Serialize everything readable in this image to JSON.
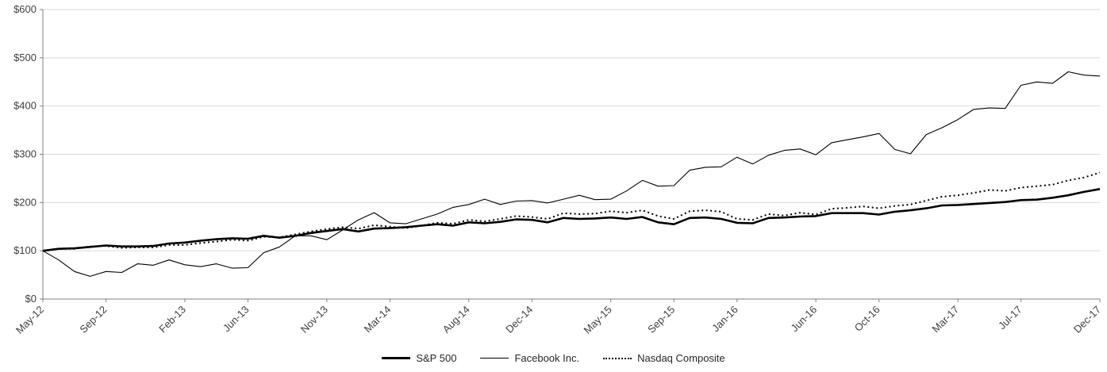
{
  "colors": {
    "background": "#ffffff",
    "grid": "#d9d9d9",
    "axis": "#808080",
    "text": "#404040",
    "series": "#000000"
  },
  "chart_data": {
    "type": "line",
    "title": "",
    "xlabel": "",
    "ylabel": "",
    "ylim": [
      0,
      600
    ],
    "y_tick_step": 100,
    "y_tick_labels": [
      "$0",
      "$100",
      "$200",
      "$300",
      "$400",
      "$500",
      "$600"
    ],
    "grid": "horizontal",
    "legend_position": "bottom-center",
    "x_months": [
      "May-12",
      "Jun-12",
      "Jul-12",
      "Aug-12",
      "Sep-12",
      "Oct-12",
      "Nov-12",
      "Dec-12",
      "Jan-13",
      "Feb-13",
      "Mar-13",
      "Apr-13",
      "May-13",
      "Jun-13",
      "Jul-13",
      "Aug-13",
      "Sep-13",
      "Oct-13",
      "Nov-13",
      "Dec-13",
      "Jan-14",
      "Feb-14",
      "Mar-14",
      "Apr-14",
      "May-14",
      "Jun-14",
      "Jul-14",
      "Aug-14",
      "Sep-14",
      "Oct-14",
      "Nov-14",
      "Dec-14",
      "Jan-15",
      "Feb-15",
      "Mar-15",
      "Apr-15",
      "May-15",
      "Jun-15",
      "Jul-15",
      "Aug-15",
      "Sep-15",
      "Oct-15",
      "Nov-15",
      "Dec-15",
      "Jan-16",
      "Feb-16",
      "Mar-16",
      "Apr-16",
      "May-16",
      "Jun-16",
      "Jul-16",
      "Aug-16",
      "Sep-16",
      "Oct-16",
      "Nov-16",
      "Dec-16",
      "Jan-17",
      "Feb-17",
      "Mar-17",
      "Apr-17",
      "May-17",
      "Jun-17",
      "Jul-17",
      "Aug-17",
      "Sep-17",
      "Oct-17",
      "Nov-17",
      "Dec-17"
    ],
    "x_tick_labels": [
      "May-12",
      "Sep-12",
      "Feb-13",
      "Jun-13",
      "Nov-13",
      "Mar-14",
      "Aug-14",
      "Dec-14",
      "May-15",
      "Sep-15",
      "Jan-16",
      "Jun-16",
      "Oct-16",
      "Mar-17",
      "Jul-17",
      "Dec-17"
    ],
    "x_tick_indices": [
      0,
      4,
      9,
      13,
      18,
      22,
      27,
      31,
      36,
      40,
      44,
      49,
      53,
      58,
      62,
      67
    ],
    "series": [
      {
        "name": "S&P 500",
        "style": "solid-thick",
        "color": "#000000",
        "values": [
          100,
          104,
          105,
          108,
          111,
          109,
          109,
          110,
          115,
          117,
          121,
          124,
          126,
          125,
          131,
          127,
          131,
          137,
          141,
          145,
          140,
          146,
          147,
          149,
          152,
          155,
          152,
          159,
          157,
          160,
          165,
          164,
          159,
          168,
          166,
          167,
          169,
          166,
          170,
          159,
          155,
          168,
          169,
          166,
          158,
          157,
          168,
          169,
          171,
          172,
          178,
          178,
          178,
          175,
          181,
          184,
          188,
          194,
          195,
          197,
          199,
          201,
          205,
          206,
          210,
          215,
          222,
          228
        ]
      },
      {
        "name": "Facebook Inc.",
        "style": "solid-thin",
        "color": "#000000",
        "values": [
          100,
          81,
          57,
          47,
          57,
          55,
          73,
          70,
          81,
          71,
          67,
          73,
          64,
          65,
          96,
          108,
          131,
          131,
          123,
          143,
          164,
          179,
          158,
          156,
          166,
          176,
          190,
          196,
          207,
          196,
          203,
          204,
          199,
          207,
          215,
          206,
          207,
          224,
          246,
          234,
          235,
          267,
          273,
          274,
          294,
          280,
          298,
          308,
          311,
          299,
          324,
          330,
          336,
          343,
          310,
          301,
          341,
          355,
          372,
          393,
          396,
          395,
          443,
          450,
          447,
          471,
          464,
          462
        ]
      },
      {
        "name": "Nasdaq Composite",
        "style": "dotted",
        "color": "#000000",
        "values": [
          100,
          104,
          104,
          109,
          110,
          106,
          107,
          107,
          112,
          112,
          116,
          119,
          123,
          121,
          129,
          128,
          134,
          140,
          145,
          149,
          146,
          153,
          150,
          147,
          152,
          158,
          156,
          164,
          161,
          166,
          172,
          170,
          166,
          178,
          176,
          177,
          182,
          179,
          184,
          172,
          166,
          182,
          184,
          181,
          166,
          164,
          176,
          173,
          179,
          175,
          187,
          189,
          192,
          188,
          193,
          196,
          204,
          212,
          215,
          220,
          226,
          224,
          231,
          234,
          237,
          246,
          252,
          262
        ]
      }
    ]
  }
}
